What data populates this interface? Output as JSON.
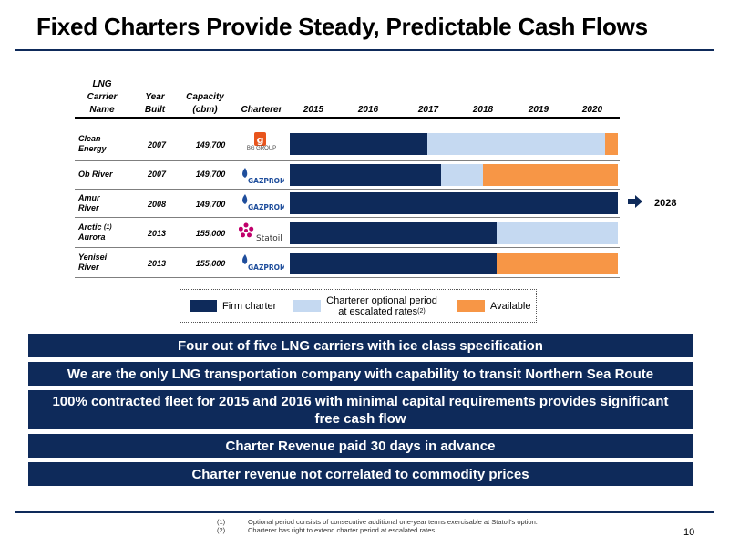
{
  "title": "Fixed Charters Provide Steady, Predictable Cash Flows",
  "table": {
    "headers": {
      "name": [
        "LNG",
        "Carrier",
        "Name"
      ],
      "year": [
        "Year",
        "Built"
      ],
      "capacity": [
        "Capacity",
        "(cbm)"
      ],
      "charterer": "Charterer",
      "years": [
        "2015",
        "2016",
        "2017",
        "2018",
        "2019",
        "2020"
      ]
    },
    "rows": [
      {
        "name_lines": [
          "Clean",
          "Energy"
        ],
        "note": "",
        "year": "2007",
        "capacity": "149,700",
        "charterer": "BG GROUP",
        "segments": [
          {
            "type": "firm",
            "from": 0,
            "to": 0.42
          },
          {
            "type": "opt",
            "from": 0.42,
            "to": 0.96
          },
          {
            "type": "avail",
            "from": 0.96,
            "to": 1
          }
        ]
      },
      {
        "name_lines": [
          "Ob River"
        ],
        "note": "",
        "year": "2007",
        "capacity": "149,700",
        "charterer": "GAZPROM",
        "segments": [
          {
            "type": "firm",
            "from": 0,
            "to": 0.46
          },
          {
            "type": "opt",
            "from": 0.46,
            "to": 0.59
          },
          {
            "type": "avail",
            "from": 0.59,
            "to": 1
          }
        ]
      },
      {
        "name_lines": [
          "Amur",
          "River"
        ],
        "note": "",
        "year": "2008",
        "capacity": "149,700",
        "charterer": "GAZPROM",
        "segments": [
          {
            "type": "firm",
            "from": 0,
            "to": 1
          }
        ]
      },
      {
        "name_lines": [
          "Arctic",
          "Aurora"
        ],
        "note": "(1)",
        "year": "2013",
        "capacity": "155,000",
        "charterer": "Statoil",
        "segments": [
          {
            "type": "firm",
            "from": 0,
            "to": 0.63
          },
          {
            "type": "opt",
            "from": 0.63,
            "to": 1
          }
        ]
      },
      {
        "name_lines": [
          "Yenisei",
          "River"
        ],
        "note": "",
        "year": "2013",
        "capacity": "155,000",
        "charterer": "GAZPROM",
        "segments": [
          {
            "type": "firm",
            "from": 0,
            "to": 0.63
          },
          {
            "type": "avail",
            "from": 0.63,
            "to": 1
          }
        ]
      }
    ],
    "extension_year": "2028"
  },
  "legend": {
    "firm": "Firm charter",
    "optional_line1": "Charterer optional period",
    "optional_line2": "at escalated rates",
    "optional_note": "(2)",
    "available": "Available"
  },
  "colors": {
    "firm": "#0e2a5a",
    "optional": "#c5d9f1",
    "available": "#f79646",
    "bg_group": "#e8541c",
    "gazprom": "#1f4e9c",
    "statoil": "#c0006b"
  },
  "banners": [
    [
      "Four out of five LNG carriers with ice class specification"
    ],
    [
      "We are the only LNG transportation company with capability to transit Northern Sea Route"
    ],
    [
      "100% contracted fleet for 2015 and 2016 with minimal capital requirements provides significant",
      "free cash flow"
    ],
    [
      "Charter Revenue paid 30 days in advance"
    ],
    [
      "Charter revenue not correlated to commodity prices"
    ]
  ],
  "footnotes": [
    {
      "num": "(1)",
      "text": "Optional period consists of consecutive additional one-year terms exercisable at Statoil's option."
    },
    {
      "num": "(2)",
      "text": "Charterer has right to extend charter period at escalated rates."
    }
  ],
  "page_number": "10"
}
